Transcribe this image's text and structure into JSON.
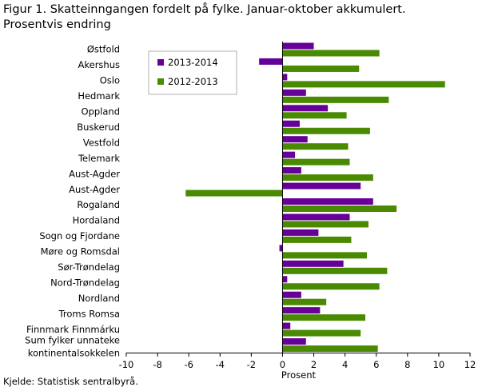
{
  "header": {
    "title_line1": "Figur 1. Skatteinngangen fordelt på fylke. Januar-oktober akkumulert.",
    "title_line2": "Prosentvis endring"
  },
  "footer": {
    "source": "Kjelde: Statistisk sentralbyrå."
  },
  "colors": {
    "series_2013_2014": "#660099",
    "series_2012_2013": "#4a8a00",
    "axis": "#000000",
    "legend_border": "#b0b0b0"
  },
  "chart_data": {
    "type": "bar",
    "orientation": "horizontal",
    "title": "Figur 1. Skatteinngangen fordelt på fylke. Januar-oktober akkumulert. Prosentvis endring",
    "xlabel": "Prosent",
    "ylabel": "",
    "xlim": [
      -10,
      12
    ],
    "xticks": [
      -10,
      -8,
      -6,
      -4,
      -2,
      0,
      2,
      4,
      6,
      8,
      10,
      12
    ],
    "grid": false,
    "legend_position": "top-left",
    "categories": [
      [
        "Østfold"
      ],
      [
        "Akershus"
      ],
      [
        "Oslo"
      ],
      [
        "Hedmark"
      ],
      [
        "Oppland"
      ],
      [
        "Buskerud"
      ],
      [
        "Vestfold"
      ],
      [
        "Telemark"
      ],
      [
        "Aust-Agder"
      ],
      [
        "Aust-Agder"
      ],
      [
        "Rogaland"
      ],
      [
        "Hordaland"
      ],
      [
        "Sogn og Fjordane"
      ],
      [
        "Møre og Romsdal"
      ],
      [
        "Sør-Trøndelag"
      ],
      [
        "Nord-Trøndelag"
      ],
      [
        "Nordland"
      ],
      [
        "Troms Romsa"
      ],
      [
        "Finnmark Finnmárku"
      ],
      [
        "Sum fylker unnateke",
        "kontinentalsokkelen"
      ]
    ],
    "series": [
      {
        "name": "2013-2014",
        "values": [
          2.0,
          -1.5,
          0.3,
          1.5,
          2.9,
          1.1,
          1.6,
          0.8,
          1.2,
          5.0,
          5.8,
          4.3,
          2.3,
          -0.2,
          3.9,
          0.3,
          1.2,
          2.4,
          0.5,
          1.5
        ]
      },
      {
        "name": "2012-2013",
        "values": [
          6.2,
          4.9,
          10.4,
          6.8,
          4.1,
          5.6,
          4.2,
          4.3,
          5.8,
          -6.2,
          7.3,
          5.5,
          4.4,
          5.4,
          6.7,
          6.2,
          2.8,
          5.3,
          5.0,
          6.1
        ]
      }
    ]
  }
}
